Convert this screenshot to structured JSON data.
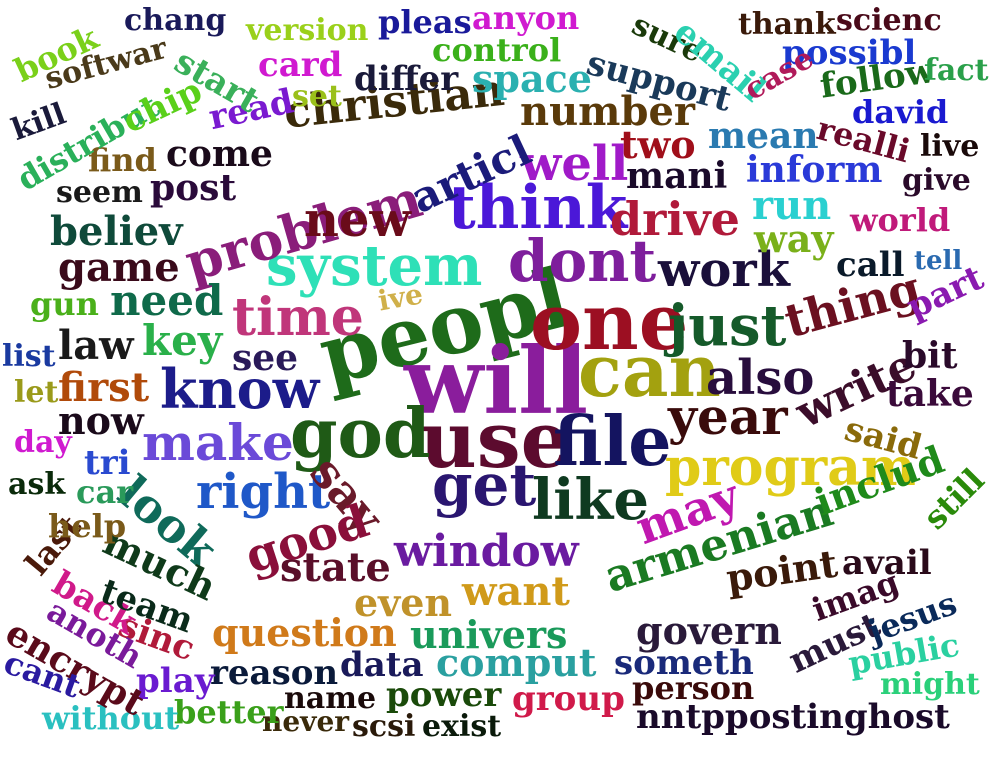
{
  "words": [
    {
      "text": "peopl",
      "color": "#1e6b1a"
    },
    {
      "text": "will",
      "color": "#8a1d9c"
    },
    {
      "text": "one",
      "color": "#9c0f22"
    },
    {
      "text": "can",
      "color": "#a3a10f"
    },
    {
      "text": "use",
      "color": "#5c0b2e"
    },
    {
      "text": "file",
      "color": "#141460"
    },
    {
      "text": "god",
      "color": "#1f5a16"
    },
    {
      "text": "system",
      "color": "#2ee0b7"
    },
    {
      "text": "dont",
      "color": "#7e1e9c"
    },
    {
      "text": "think",
      "color": "#4b18d8"
    },
    {
      "text": "time",
      "color": "#c0367a"
    },
    {
      "text": "program",
      "color": "#e0cb17"
    },
    {
      "text": "get",
      "color": "#2a1670"
    },
    {
      "text": "like",
      "color": "#0f3a20"
    },
    {
      "text": "window",
      "color": "#6a1ba0"
    },
    {
      "text": "know",
      "color": "#1c1c8a"
    },
    {
      "text": "make",
      "color": "#6b4ad8"
    },
    {
      "text": "right",
      "color": "#1f58c8"
    },
    {
      "text": "just",
      "color": "#155a2a"
    },
    {
      "text": "work",
      "color": "#1a0f3a"
    },
    {
      "text": "year",
      "color": "#3a0b0b"
    },
    {
      "text": "also",
      "color": "#280d3d"
    },
    {
      "text": "thing",
      "color": "#6b1020"
    },
    {
      "text": "write",
      "color": "#3b0d2a"
    },
    {
      "text": "problem",
      "color": "#8a1d7a"
    },
    {
      "text": "new",
      "color": "#6a0b1a"
    },
    {
      "text": "drive",
      "color": "#b01a3a"
    },
    {
      "text": "well",
      "color": "#a01ac8"
    },
    {
      "text": "articl",
      "color": "#1b1b7a"
    },
    {
      "text": "say",
      "color": "#6a1a2a"
    },
    {
      "text": "good",
      "color": "#8a0f3a"
    },
    {
      "text": "look",
      "color": "#0f6a5a"
    },
    {
      "text": "may",
      "color": "#c018b0"
    },
    {
      "text": "armenian",
      "color": "#1a7a22"
    },
    {
      "text": "includ",
      "color": "#1f8a1a"
    },
    {
      "text": "state",
      "color": "#5a0f2a"
    },
    {
      "text": "much",
      "color": "#0f3a1a"
    },
    {
      "text": "want",
      "color": "#d09a1a"
    },
    {
      "text": "even",
      "color": "#c0922a"
    },
    {
      "text": "question",
      "color": "#d07a1a"
    },
    {
      "text": "univers",
      "color": "#1a9a5a"
    },
    {
      "text": "point",
      "color": "#3a1a0a"
    },
    {
      "text": "govern",
      "color": "#2a1a3a"
    },
    {
      "text": "need",
      "color": "#0f6a4a"
    },
    {
      "text": "key",
      "color": "#2ab04a"
    },
    {
      "text": "see",
      "color": "#2a1a5a"
    },
    {
      "text": "law",
      "color": "#1a1a1a"
    },
    {
      "text": "first",
      "color": "#b04a0a"
    },
    {
      "text": "now",
      "color": "#1a0a1a"
    },
    {
      "text": "game",
      "color": "#3a0a1a"
    },
    {
      "text": "believ",
      "color": "#0f4a3a"
    },
    {
      "text": "christian",
      "color": "#3a2a0a"
    },
    {
      "text": "number",
      "color": "#5a3a0a"
    },
    {
      "text": "mani",
      "color": "#1a0a2a"
    },
    {
      "text": "inform",
      "color": "#2a3ad8"
    },
    {
      "text": "two",
      "color": "#a00f1a"
    },
    {
      "text": "mean",
      "color": "#2a7ab0"
    },
    {
      "text": "run",
      "color": "#2ad0d0"
    },
    {
      "text": "way",
      "color": "#7ab01a"
    },
    {
      "text": "world",
      "color": "#c01a7a"
    },
    {
      "text": "call",
      "color": "#0a1a2a"
    },
    {
      "text": "tell",
      "color": "#2a6ab0"
    },
    {
      "text": "part",
      "color": "#8a1ab0"
    },
    {
      "text": "bit",
      "color": "#2a0a2a"
    },
    {
      "text": "take",
      "color": "#3a0a3a"
    },
    {
      "text": "said",
      "color": "#8a6a0a"
    },
    {
      "text": "still",
      "color": "#2a8a0a"
    },
    {
      "text": "avail",
      "color": "#2a0a1a"
    },
    {
      "text": "imag",
      "color": "#3a0a2a"
    },
    {
      "text": "must",
      "color": "#2a1a3a"
    },
    {
      "text": "jesus",
      "color": "#0a2a5a"
    },
    {
      "text": "public",
      "color": "#2ad0a0"
    },
    {
      "text": "might",
      "color": "#2ad07a"
    },
    {
      "text": "nntppostinghost",
      "color": "#1a0a2a"
    },
    {
      "text": "person",
      "color": "#3a0a0a"
    },
    {
      "text": "group",
      "color": "#d01a4a"
    },
    {
      "text": "someth",
      "color": "#1a2a7a"
    },
    {
      "text": "comput",
      "color": "#2aa0a0"
    },
    {
      "text": "data",
      "color": "#1a1a5a"
    },
    {
      "text": "power",
      "color": "#1a4a0a"
    },
    {
      "text": "name",
      "color": "#1a0a0a"
    },
    {
      "text": "exist",
      "color": "#0a1a0a"
    },
    {
      "text": "scsi",
      "color": "#2a1a0a"
    },
    {
      "text": "never",
      "color": "#3a2a0a"
    },
    {
      "text": "reason",
      "color": "#0a1a3a"
    },
    {
      "text": "play",
      "color": "#6a1ad0"
    },
    {
      "text": "better",
      "color": "#3aa01a"
    },
    {
      "text": "without",
      "color": "#2ac0c0"
    },
    {
      "text": "encrypt",
      "color": "#5a0a1a"
    },
    {
      "text": "cant",
      "color": "#2a1aa0"
    },
    {
      "text": "sinc",
      "color": "#b01a3a"
    },
    {
      "text": "anoth",
      "color": "#7a1a9a"
    },
    {
      "text": "back",
      "color": "#d01a8a"
    },
    {
      "text": "last",
      "color": "#4a1a0a"
    },
    {
      "text": "team",
      "color": "#0a2a1a"
    },
    {
      "text": "help",
      "color": "#7a5a1a"
    },
    {
      "text": "car",
      "color": "#2a9a5a"
    },
    {
      "text": "ask",
      "color": "#0a2a0a"
    },
    {
      "text": "tri",
      "color": "#2a4ad0"
    },
    {
      "text": "day",
      "color": "#d01ad0"
    },
    {
      "text": "let",
      "color": "#9a9a1a"
    },
    {
      "text": "list",
      "color": "#1a3aa0"
    },
    {
      "text": "gun",
      "color": "#4ab01a"
    },
    {
      "text": "ive",
      "color": "#d0b04a"
    },
    {
      "text": "seem",
      "color": "#1a1a1a"
    },
    {
      "text": "post",
      "color": "#2a0a3a"
    },
    {
      "text": "come",
      "color": "#1a0a1a"
    },
    {
      "text": "find",
      "color": "#7a5a1a"
    },
    {
      "text": "distribut",
      "color": "#2ab05a"
    },
    {
      "text": "kill",
      "color": "#1a1a3a"
    },
    {
      "text": "softwar",
      "color": "#4a3a1a"
    },
    {
      "text": "book",
      "color": "#7ad01a"
    },
    {
      "text": "chip",
      "color": "#5ad01a"
    },
    {
      "text": "read",
      "color": "#7a1ad0"
    },
    {
      "text": "set",
      "color": "#9ac01a"
    },
    {
      "text": "card",
      "color": "#d01ad0"
    },
    {
      "text": "start",
      "color": "#3ab05a"
    },
    {
      "text": "chang",
      "color": "#1a1a5a"
    },
    {
      "text": "version",
      "color": "#9ad01a"
    },
    {
      "text": "control",
      "color": "#3ab01a"
    },
    {
      "text": "pleas",
      "color": "#1a1a9a"
    },
    {
      "text": "anyon",
      "color": "#d01ad0"
    },
    {
      "text": "differ",
      "color": "#1a1a3a"
    },
    {
      "text": "space",
      "color": "#2ab0b0"
    },
    {
      "text": "support",
      "color": "#1a3a5a"
    },
    {
      "text": "sure",
      "color": "#1a3a0a"
    },
    {
      "text": "email",
      "color": "#2ad0b0"
    },
    {
      "text": "thank",
      "color": "#3a1a0a"
    },
    {
      "text": "scienc",
      "color": "#4a0a1a"
    },
    {
      "text": "possibl",
      "color": "#1a3ad0"
    },
    {
      "text": "case",
      "color": "#b01a5a"
    },
    {
      "text": "follow",
      "color": "#1a6a1a"
    },
    {
      "text": "fact",
      "color": "#2aa04a"
    },
    {
      "text": "david",
      "color": "#1a1ad0"
    },
    {
      "text": "realli",
      "color": "#6a0a2a"
    },
    {
      "text": "live",
      "color": "#1a0a0a"
    },
    {
      "text": "give",
      "color": "#2a0a2a"
    }
  ]
}
